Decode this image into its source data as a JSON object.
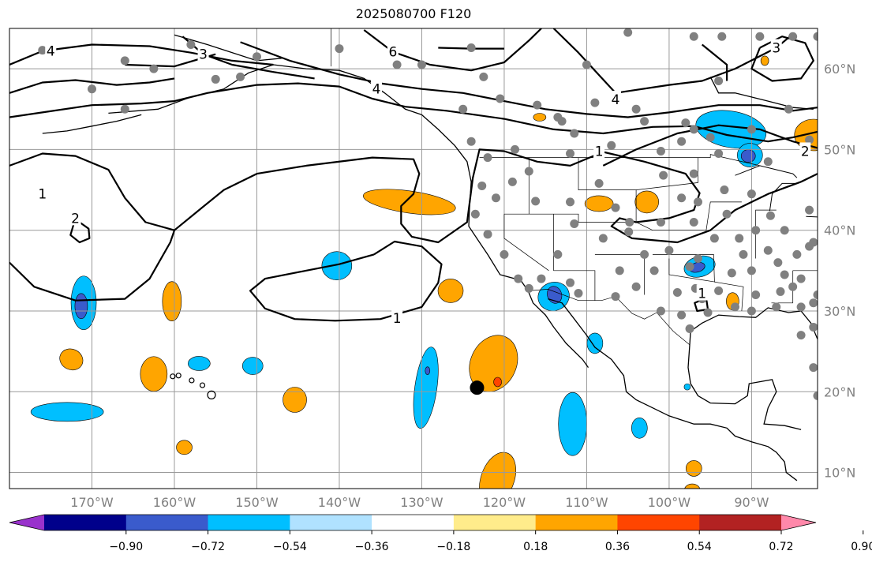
{
  "title": "2025080700 F120",
  "map": {
    "lon_min": -180,
    "lon_max": -82,
    "lat_min": 8,
    "lat_max": 65,
    "lon_ticks": [
      {
        "value": -170,
        "label": "170°W"
      },
      {
        "value": -160,
        "label": "160°W"
      },
      {
        "value": -150,
        "label": "150°W"
      },
      {
        "value": -140,
        "label": "140°W"
      },
      {
        "value": -130,
        "label": "130°W"
      },
      {
        "value": -120,
        "label": "120°W"
      },
      {
        "value": -110,
        "label": "110°W"
      },
      {
        "value": -100,
        "label": "100°W"
      },
      {
        "value": -90,
        "label": "90°W"
      }
    ],
    "lat_ticks": [
      {
        "value": 60,
        "label": "60°N"
      },
      {
        "value": 50,
        "label": "50°N"
      },
      {
        "value": 40,
        "label": "40°N"
      },
      {
        "value": 30,
        "label": "30°N"
      },
      {
        "value": 20,
        "label": "20°N"
      },
      {
        "value": 10,
        "label": "10°N"
      }
    ],
    "grid": true,
    "marker": {
      "lon": -123.3,
      "lat": 20.5,
      "color": "#000000"
    },
    "stations_color": "#808080",
    "contour_labels": [
      {
        "text": "4",
        "lon": -175,
        "lat": 62.2
      },
      {
        "text": "3",
        "lon": -156.5,
        "lat": 61.8
      },
      {
        "text": "6",
        "lon": -133.5,
        "lat": 62.1
      },
      {
        "text": "4",
        "lon": -135.5,
        "lat": 57.5
      },
      {
        "text": "4",
        "lon": -106.5,
        "lat": 56.2
      },
      {
        "text": "3",
        "lon": -87,
        "lat": 62.6
      },
      {
        "text": "1",
        "lon": -108.5,
        "lat": 49.8
      },
      {
        "text": "2",
        "lon": -83.5,
        "lat": 49.8
      },
      {
        "text": "1",
        "lon": -176,
        "lat": 44.5
      },
      {
        "text": "2",
        "lon": -172,
        "lat": 41.5
      },
      {
        "text": "1",
        "lon": -96,
        "lat": 32.2
      },
      {
        "text": "1",
        "lon": -133,
        "lat": 29.1
      }
    ]
  },
  "colorbar": {
    "ticks": [
      "−0.90",
      "−0.72",
      "−0.54",
      "−0.36",
      "−0.18",
      "0.18",
      "0.36",
      "0.54",
      "0.72",
      "0.90"
    ],
    "colors": [
      "#9932CC",
      "#00008B",
      "#3A5BCC",
      "#00BFFF",
      "#B0E2FF",
      "#FFFFFF",
      "#FFEC8B",
      "#FFA500",
      "#FF4500",
      "#B22222",
      "#FF88AA"
    ]
  }
}
